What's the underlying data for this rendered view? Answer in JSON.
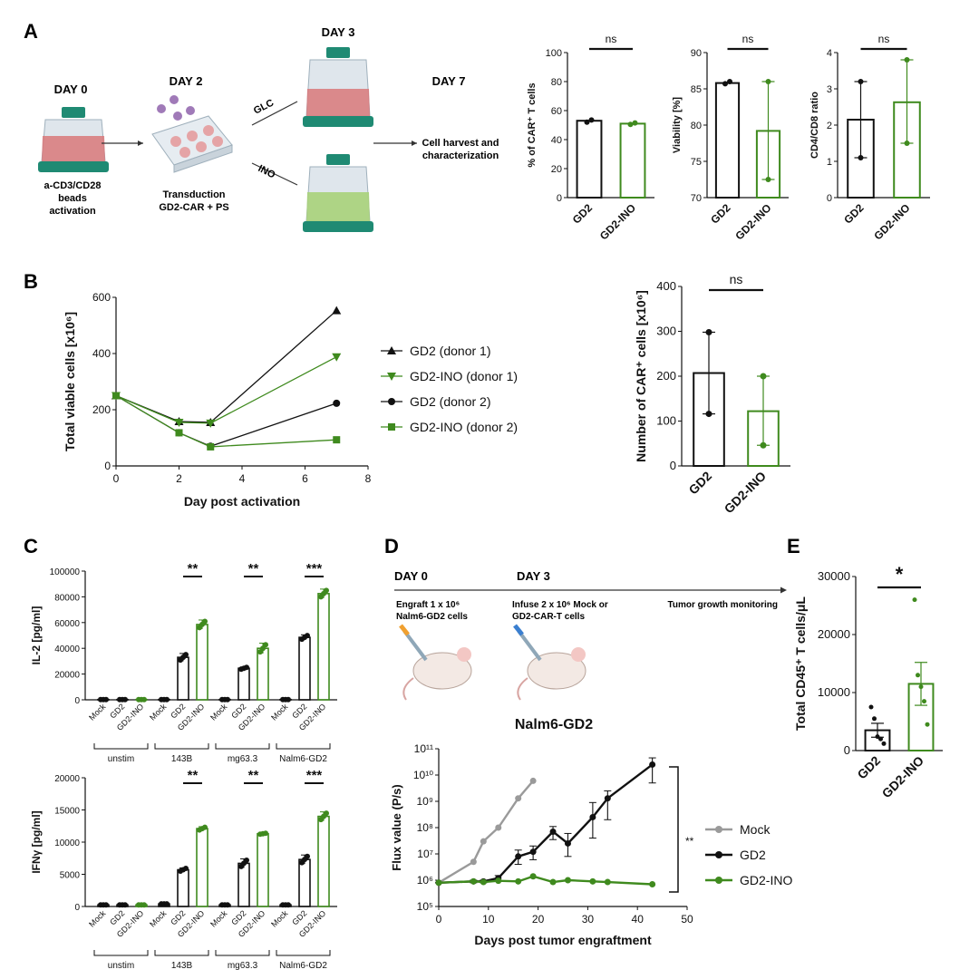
{
  "colors": {
    "black": "#111111",
    "green": "#3f8a1e",
    "gray": "#9a9a9a",
    "teal": "#1f8a73",
    "red": "#d9787a",
    "lightgreen": "#a8d27a"
  },
  "panels": {
    "A": "A",
    "B": "B",
    "C": "C",
    "D": "D",
    "E": "E"
  },
  "schematicA": {
    "day0": "DAY 0",
    "day2": "DAY 2",
    "day3": "DAY 3",
    "day7": "DAY 7",
    "glc": "GLC",
    "ino": "INO",
    "activation_lines": [
      "a-CD3/CD28",
      "beads",
      "activation"
    ],
    "transduction_lines": [
      "Transduction",
      "GD2-CAR + PS"
    ],
    "harvest_lines": [
      "Cell harvest and",
      "characterization"
    ]
  },
  "schematicD": {
    "day0": "DAY 0",
    "day3": "DAY 3",
    "engraft_lines": [
      "Engraft 1 x 10⁶",
      "Nalm6-GD2 cells"
    ],
    "infuse_lines": [
      "Infuse 2 x 10⁶ Mock or",
      "GD2-CAR-T cells"
    ],
    "monitor": "Tumor growth monitoring"
  },
  "chart_data": [
    {
      "id": "A1",
      "type": "bar",
      "categories": [
        "GD2",
        "GD2-INO"
      ],
      "values": [
        53,
        51
      ],
      "points": [
        [
          52,
          53.5
        ],
        [
          50.5,
          51.5
        ]
      ],
      "errors": [
        null,
        null
      ],
      "ylabel": "% of CAR⁺ T cells",
      "ylim": [
        0,
        100
      ],
      "yticks": [
        0,
        20,
        40,
        60,
        80,
        100
      ],
      "significance": "ns"
    },
    {
      "id": "A2",
      "type": "bar",
      "categories": [
        "GD2",
        "GD2-INO"
      ],
      "values": [
        85.8,
        79.2
      ],
      "points": [
        [
          85.7,
          86.0
        ],
        [
          86.0,
          72.5
        ]
      ],
      "errors": [
        null,
        [
          72.5,
          86.0
        ]
      ],
      "ylabel": "Viability [%]",
      "ylim": [
        70,
        90
      ],
      "yticks": [
        70,
        75,
        80,
        85,
        90
      ],
      "significance": "ns"
    },
    {
      "id": "A3",
      "type": "bar",
      "categories": [
        "GD2",
        "GD2-INO"
      ],
      "values": [
        2.15,
        2.63
      ],
      "points": [
        [
          3.2,
          1.1
        ],
        [
          3.8,
          1.5
        ]
      ],
      "errors": [
        [
          1.1,
          3.2
        ],
        [
          1.5,
          3.8
        ]
      ],
      "ylabel": "CD4/CD8 ratio",
      "ylim": [
        0,
        4
      ],
      "yticks": [
        0,
        1,
        2,
        3,
        4
      ],
      "significance": "ns"
    },
    {
      "id": "B1",
      "type": "line",
      "xlabel": "Day post activation",
      "ylabel": "Total viable cells [x10⁶]",
      "xlim": [
        0,
        8
      ],
      "ylim": [
        0,
        600
      ],
      "xticks": [
        0,
        2,
        4,
        6,
        8
      ],
      "yticks": [
        0,
        200,
        400,
        600
      ],
      "series": [
        {
          "name": "GD2 (donor 1)",
          "marker": "triangle-up",
          "color": "#111111",
          "x": [
            0,
            2,
            3,
            7
          ],
          "y": [
            250,
            158,
            155,
            553
          ]
        },
        {
          "name": "GD2-INO (donor 1)",
          "marker": "triangle-down",
          "color": "#3f8a1e",
          "x": [
            0,
            2,
            3,
            7
          ],
          "y": [
            250,
            155,
            152,
            388
          ]
        },
        {
          "name": "GD2 (donor 2)",
          "marker": "circle",
          "color": "#111111",
          "x": [
            0,
            2,
            3,
            7
          ],
          "y": [
            250,
            118,
            70,
            223
          ]
        },
        {
          "name": "GD2-INO (donor 2)",
          "marker": "square",
          "color": "#3f8a1e",
          "x": [
            0,
            2,
            3,
            7
          ],
          "y": [
            250,
            118,
            68,
            93
          ]
        }
      ]
    },
    {
      "id": "B2",
      "type": "bar",
      "categories": [
        "GD2",
        "GD2-INO"
      ],
      "values": [
        207,
        122
      ],
      "points": [
        [
          298,
          116
        ],
        [
          200,
          46
        ]
      ],
      "errors": [
        [
          116,
          298
        ],
        [
          46,
          200
        ]
      ],
      "ylabel": "Number of CAR⁺ cells [x10⁶]",
      "ylim": [
        0,
        400
      ],
      "yticks": [
        0,
        100,
        200,
        300,
        400
      ],
      "significance": "ns"
    },
    {
      "id": "C1",
      "type": "bar",
      "ylabel": "IL-2 [pg/ml]",
      "ylim": [
        0,
        100000
      ],
      "yticks": [
        0,
        20000,
        40000,
        60000,
        80000,
        100000
      ],
      "categories": [
        "Mock",
        "GD2",
        "GD2-INO",
        "Mock",
        "GD2",
        "GD2-INO",
        "Mock",
        "GD2",
        "GD2-INO",
        "Mock",
        "GD2",
        "GD2-INO"
      ],
      "groups": [
        "unstim",
        "143B",
        "mg63.3",
        "Nalm6-GD2"
      ],
      "values": [
        200,
        200,
        200,
        200,
        33000,
        58500,
        200,
        24500,
        40000,
        200,
        48500,
        82500
      ],
      "errors": [
        0,
        0,
        0,
        0,
        3000,
        3500,
        0,
        1000,
        4000,
        0,
        2000,
        3500
      ],
      "significance": [
        "",
        "**",
        "**",
        "***"
      ]
    },
    {
      "id": "C2",
      "type": "bar",
      "ylabel": "IFNγ [pg/ml]",
      "ylim": [
        0,
        20000
      ],
      "yticks": [
        0,
        5000,
        10000,
        15000,
        20000
      ],
      "categories": [
        "Mock",
        "GD2",
        "GD2-INO",
        "Mock",
        "GD2",
        "GD2-INO",
        "Mock",
        "GD2",
        "GD2-INO",
        "Mock",
        "GD2",
        "GD2-INO"
      ],
      "groups": [
        "unstim",
        "143B",
        "mg63.3",
        "Nalm6-GD2"
      ],
      "values": [
        250,
        250,
        250,
        400,
        5700,
        12100,
        250,
        6700,
        11300,
        250,
        7300,
        14000
      ],
      "errors": [
        0,
        0,
        0,
        0,
        300,
        300,
        0,
        700,
        100,
        0,
        700,
        700
      ],
      "significance": [
        "",
        "**",
        "**",
        "***"
      ]
    },
    {
      "id": "D1",
      "type": "line",
      "title": "Nalm6-GD2",
      "xlabel": "Days post tumor engraftment",
      "ylabel": "Flux value (P/s)",
      "xlim": [
        0,
        50
      ],
      "ylim": [
        100000,
        100000000000
      ],
      "yscale": "log",
      "xticks": [
        0,
        10,
        20,
        30,
        40,
        50
      ],
      "yticks": [
        "10⁵",
        "10⁶",
        "10⁷",
        "10⁸",
        "10⁹",
        "10¹⁰",
        "10¹¹"
      ],
      "significance": "**",
      "series": [
        {
          "name": "Mock",
          "color": "#9a9a9a",
          "x": [
            0,
            7,
            9,
            12,
            16,
            19
          ],
          "y": [
            800000,
            5000000,
            30000000,
            100000000,
            1300000000,
            6000000000
          ]
        },
        {
          "name": "GD2",
          "color": "#111111",
          "x": [
            0,
            7,
            9,
            12,
            16,
            19,
            23,
            26,
            31,
            34,
            43
          ],
          "y": [
            800000,
            900000,
            900000,
            1200000,
            8000000,
            12000000,
            70000000,
            25000000,
            250000000,
            1300000000,
            25000000000
          ],
          "err_low": [
            800000,
            800000,
            800000,
            1000000,
            4000000,
            6000000,
            35000000,
            8000000,
            40000000,
            200000000,
            5000000000
          ],
          "err_high": [
            800000,
            1000000,
            1000000,
            1500000,
            14000000,
            20000000,
            110000000,
            60000000,
            900000000,
            2500000000,
            45000000000
          ]
        },
        {
          "name": "GD2-INO",
          "color": "#3f8a1e",
          "x": [
            0,
            7,
            9,
            12,
            16,
            19,
            23,
            26,
            31,
            34,
            43
          ],
          "y": [
            800000,
            900000,
            850000,
            950000,
            900000,
            1400000,
            850000,
            1000000,
            900000,
            850000,
            700000
          ]
        }
      ]
    },
    {
      "id": "E1",
      "type": "bar",
      "categories": [
        "GD2",
        "GD2-INO"
      ],
      "values": [
        3500,
        11500
      ],
      "errors": [
        [
          2300,
          4700
        ],
        [
          7800,
          15200
        ]
      ],
      "points": [
        [
          7500,
          5500,
          2400,
          2000,
          1200
        ],
        [
          26000,
          13000,
          11000,
          8500,
          4500
        ]
      ],
      "ylabel": "Total CD45⁺ T cells/μL",
      "ylim": [
        0,
        30000
      ],
      "yticks": [
        0,
        10000,
        20000,
        30000
      ],
      "significance": "*"
    }
  ]
}
